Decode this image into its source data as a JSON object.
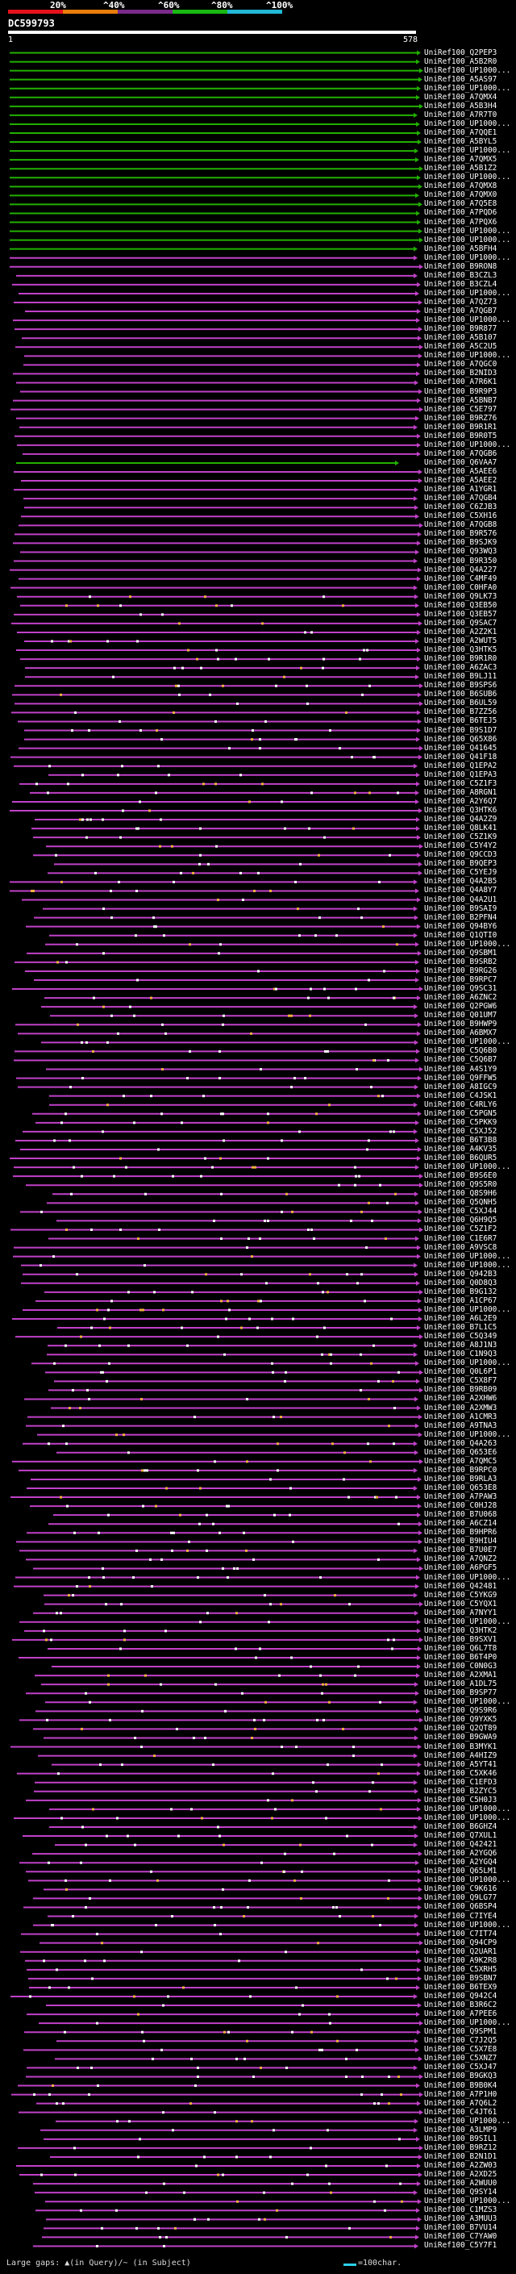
{
  "legend": {
    "percent_labels": [
      "20%",
      "^40%",
      "^60%",
      "^80%",
      "^100%"
    ],
    "colors": [
      "#e5121b",
      "#e87d0c",
      "#7a2a8a",
      "#19b812",
      "#22b8d6"
    ]
  },
  "query": {
    "title": "DC599793",
    "start": "1",
    "end": "578"
  },
  "footer": {
    "gaps": "Large gaps: ▲(in Query)/~ (in Subject)",
    "scale": "=100char."
  },
  "hits": [
    "UniRef100_Q2PEP3",
    "UniRef100_A5B2R0",
    "UniRef100_UP1000...",
    "UniRef100_A5AS97",
    "UniRef100_UP1000...",
    "UniRef100_A7QMX4",
    "UniRef100_A5B3H4",
    "UniRef100_A7R7T0",
    "UniRef100_UP1000...",
    "UniRef100_A7QQE1",
    "UniRef100_A5BYL5",
    "UniRef100_UP1000...",
    "UniRef100_A7QMX5",
    "UniRef100_A5B1Z2",
    "UniRef100_UP1000...",
    "UniRef100_A7QMX8",
    "UniRef100_A7QMX0",
    "UniRef100_A7Q5E8",
    "UniRef100_A7PQD6",
    "UniRef100_A7PQX6",
    "UniRef100_UP1000...",
    "UniRef100_UP1000...",
    "UniRef100_A5BFH4",
    "UniRef100_UP1000...",
    "UniRef100_B9RON8",
    "UniRef100_B3CZL3",
    "UniRef100_B3CZL4",
    "UniRef100_UP1000...",
    "UniRef100_A7QZ73",
    "UniRef100_A7QGB7",
    "UniRef100_UP1000...",
    "UniRef100_B9R877",
    "UniRef100_A5B107",
    "UniRef100_A5C2U5",
    "UniRef100_UP1000...",
    "UniRef100_A7QGC0",
    "UniRef100_B2NID3",
    "UniRef100_A7R6K1",
    "UniRef100_B9R9P3",
    "UniRef100_A5BNB7",
    "UniRef100_C5E797",
    "UniRef100_B9RZ76",
    "UniRef100_B9R1R1",
    "UniRef100_B9R0T5",
    "UniRef100_UP1000...",
    "UniRef100_A7QGB6",
    "UniRef100_Q6VAA7",
    "UniRef100_A5AEE6",
    "UniRef100_A5AEE2",
    "UniRef100_A1YGR1",
    "UniRef100_A7QGB4",
    "UniRef100_C6ZJB3",
    "UniRef100_C5XH16",
    "UniRef100_A7QGB8",
    "UniRef100_B9R576",
    "UniRef100_B9SJK9",
    "UniRef100_Q93WQ3",
    "UniRef100_B9R350",
    "UniRef100_Q4A227",
    "UniRef100_C4MF49",
    "UniRef100_C0HFA0",
    "UniRef100_Q9LK73",
    "UniRef100_Q3EB50",
    "UniRef100_Q3EB57",
    "UniRef100_Q9SAC7",
    "UniRef100_A2Z2K1",
    "UniRef100_A2WUT5",
    "UniRef100_Q3HTK5",
    "UniRef100_B9R1R0",
    "UniRef100_A6ZAC3",
    "UniRef100_B9LJ11",
    "UniRef100_B9SPS6",
    "UniRef100_B6SUB6",
    "UniRef100_B6UL59",
    "UniRef100_B7ZZ56",
    "UniRef100_B6TEJ5",
    "UniRef100_B9S1D7",
    "UniRef100_Q65X86",
    "UniRef100_Q41645",
    "UniRef100_Q41F18",
    "UniRef100_Q1EPA2",
    "UniRef100_Q1EPA3",
    "UniRef100_C5Z1F3",
    "UniRef100_A8RGN1",
    "UniRef100_A2Y6Q7",
    "UniRef100_Q3HTK6",
    "UniRef100_Q4A2Z9",
    "UniRef100_Q8LK41",
    "UniRef100_C5Z1K9",
    "UniRef100_C5Y4Y2",
    "UniRef100_Q9CCD3",
    "UniRef100_B9QEP3",
    "UniRef100_C5YEJ9",
    "UniRef100_Q4A2B5",
    "UniRef100_Q4A8Y7",
    "UniRef100_Q4A2U1",
    "UniRef100_B9SAI9",
    "UniRef100_B2PFN4",
    "UniRef100_Q94BY6",
    "UniRef100_Q1QTI0",
    "UniRef100_UP1000...",
    "UniRef100_Q9SBM1",
    "UniRef100_B9SRB2",
    "UniRef100_B9RG26",
    "UniRef100_B9RPC7",
    "UniRef100_Q9SC31",
    "UniRef100_A6ZNC2",
    "UniRef100_Q2PGW6",
    "UniRef100_Q01UM7",
    "UniRef100_B9HWP9",
    "UniRef100_A6BMX7",
    "UniRef100_UP1000...",
    "UniRef100_C5Q6B0",
    "UniRef100_C5Q6B7",
    "UniRef100_A4S1Y9",
    "UniRef100_Q9FFW5",
    "UniRef100_A8IGC9",
    "UniRef100_C4JSK1",
    "UniRef100_C4RLY6",
    "UniRef100_C5PGN5",
    "UniRef100_C5PKK9",
    "UniRef100_C5XJ52",
    "UniRef100_B6T3B8",
    "UniRef100_A4KV35",
    "UniRef100_B6QUR5",
    "UniRef100_UP1000...",
    "UniRef100_B9S6E0",
    "UniRef100_Q9S5R0",
    "UniRef100_Q8S9H6",
    "UniRef100_Q5QNH5",
    "UniRef100_C5XJ44",
    "UniRef100_Q6H9Q5",
    "UniRef100_C5Z1F2",
    "UniRef100_C1E6R7",
    "UniRef100_A9VSC8",
    "UniRef100_UP1000...",
    "UniRef100_UP1000...",
    "UniRef100_Q942B3",
    "UniRef100_Q0D8Q3",
    "UniRef100_B9G132",
    "UniRef100_A1CP67",
    "UniRef100_UP1000...",
    "UniRef100_A6L2E9",
    "UniRef100_B7L1C5",
    "UniRef100_C5Q349",
    "UniRef100_A8J1N3",
    "UniRef100_C1N9Q3",
    "UniRef100_UP1000...",
    "UniRef100_Q0L6P1",
    "UniRef100_C5X8F7",
    "UniRef100_B9RB09",
    "UniRef100_A2XHW6",
    "UniRef100_A2XMW3",
    "UniRef100_A1CMR3",
    "UniRef100_A9TNA3",
    "UniRef100_UP1000...",
    "UniRef100_Q4A263",
    "UniRef100_Q653E6",
    "UniRef100_A7QMC5",
    "UniRef100_B9RPC0",
    "UniRef100_B9RLA3",
    "UniRef100_Q653E8",
    "UniRef100_A7PAW3",
    "UniRef100_C0HJ28",
    "UniRef100_B7U068",
    "UniRef100_A6CZ14",
    "UniRef100_B9HPR6",
    "UniRef100_B9HIU4",
    "UniRef100_B7U0E7",
    "UniRef100_A7QNZ2",
    "UniRef100_A6PGF5",
    "UniRef100_UP1000...",
    "UniRef100_Q42481",
    "UniRef100_C5YKG9",
    "UniRef100_C5YQX1",
    "UniRef100_A7NYY1",
    "UniRef100_UP1000...",
    "UniRef100_Q3HTK2",
    "UniRef100_B9SXV1",
    "UniRef100_Q6L7T8",
    "UniRef100_B6T4P0",
    "UniRef100_C0N0G3",
    "UniRef100_A2XMA1",
    "UniRef100_A1DL75",
    "UniRef100_B9SP77",
    "UniRef100_UP1000...",
    "UniRef100_Q9S9R6",
    "UniRef100_Q9YXK5",
    "UniRef100_Q2QT89",
    "UniRef100_B9GWA9",
    "UniRef100_B3MYK1",
    "UniRef100_A4HIZ9",
    "UniRef100_A5YT41",
    "UniRef100_C5XK46",
    "UniRef100_C1EFD3",
    "UniRef100_B2ZYC5",
    "UniRef100_C5H0J3",
    "UniRef100_UP1000...",
    "UniRef100_UP1000...",
    "UniRef100_B6GHZ4",
    "UniRef100_Q7XUL1",
    "UniRef100_Q42421",
    "UniRef100_A2YGQ6",
    "UniRef100_A2YGQ4",
    "UniRef100_Q65LM1",
    "UniRef100_UP1000...",
    "UniRef100_C9K616",
    "UniRef100_Q9LG77",
    "UniRef100_Q6BSP4",
    "UniRef100_C7IYE4",
    "UniRef100_UP1000...",
    "UniRef100_C7IT74",
    "UniRef100_Q94CP9",
    "UniRef100_Q2UAR1",
    "UniRef100_A9K2R8",
    "UniRef100_C5XRH5",
    "UniRef100_B9SBN7",
    "UniRef100_B6TEX9",
    "UniRef100_Q942C4",
    "UniRef100_B3R6C2",
    "UniRef100_A7PEE6",
    "UniRef100_UP1000...",
    "UniRef100_Q9SPM1",
    "UniRef100_C7J2Q5",
    "UniRef100_C5X7E8",
    "UniRef100_C5XNZ7",
    "UniRef100_C5XJ47",
    "UniRef100_B9GKQ3",
    "UniRef100_B9B0K4",
    "UniRef100_A7P1H0",
    "UniRef100_A7Q6L2",
    "UniRef100_C4JT61",
    "UniRef100_UP1000...",
    "UniRef100_A3LMP9",
    "UniRef100_B9SIL1",
    "UniRef100_B9RZ12",
    "UniRef100_B2N1D1",
    "UniRef100_A2ZW03",
    "UniRef100_A2XD25",
    "UniRef100_A2WUU0",
    "UniRef100_Q9SY14",
    "UniRef100_UP1000...",
    "UniRef100_C1MZS3",
    "UniRef100_A3MUU3",
    "UniRef100_B7VU14",
    "UniRef100_C7YAW0",
    "UniRef100_C5Y7F1"
  ]
}
